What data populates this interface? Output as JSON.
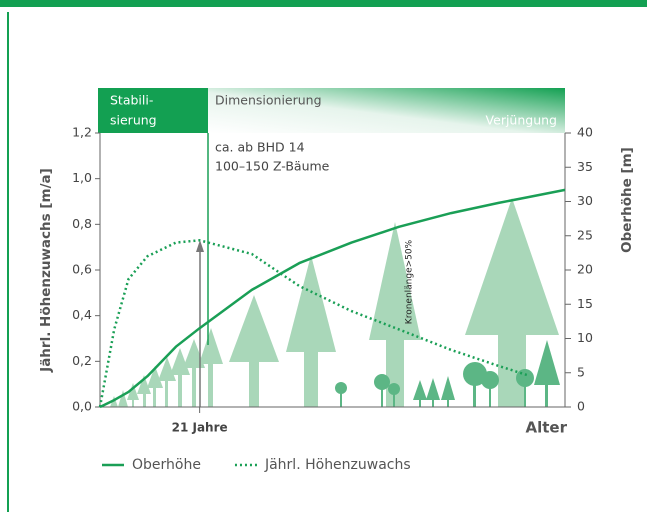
{
  "chart_data": {
    "type": "line",
    "phase_labels": [
      [
        "Stabili-",
        "sierung"
      ],
      "Dimensionierung",
      "Verjüngung"
    ],
    "annotations": [
      "ca. ab BHD 14",
      "100–150 Z-Bäume",
      "Kronenlänge>50%"
    ],
    "xlabel": "Alter",
    "ylabel": "Jährl. Höhenzuwachs [m/a]",
    "y2label": "Oberhöhe [m]",
    "xlim": [
      0,
      98
    ],
    "xticks": [
      {
        "value": 21,
        "label": "21 Jahre"
      }
    ],
    "ylim": [
      0,
      1.2
    ],
    "yticks": [
      {
        "value": 0,
        "label": "0,0"
      },
      {
        "value": 0.2,
        "label": "0,2"
      },
      {
        "value": 0.4,
        "label": "0,4"
      },
      {
        "value": 0.6,
        "label": "0,6"
      },
      {
        "value": 0.8,
        "label": "0,8"
      },
      {
        "value": 1.0,
        "label": "1,0"
      },
      {
        "value": 1.2,
        "label": "1,2"
      }
    ],
    "y2lim": [
      0,
      40
    ],
    "y2ticks": [
      0,
      5,
      10,
      15,
      20,
      25,
      30,
      35,
      40
    ],
    "x": [
      0,
      3,
      6,
      10,
      16,
      21,
      32,
      42,
      53,
      63,
      74,
      84,
      90,
      98
    ],
    "series": [
      {
        "name": "Oberhöhe",
        "color": "#1a9f56",
        "linestyle": "solid",
        "axis": "y2",
        "values": [
          0,
          1,
          2.2,
          4.5,
          8.8,
          11.5,
          17.1,
          21,
          24,
          26.3,
          28.3,
          29.8,
          30.6,
          31.7
        ]
      },
      {
        "name": "Jährl. Höhenzuwachs",
        "color": "#1a9f56",
        "linestyle": "dotted",
        "axis": "y",
        "values": [
          0,
          0.34,
          0.56,
          0.66,
          0.72,
          0.73,
          0.67,
          0.53,
          0.42,
          0.34,
          0.25,
          0.18,
          0.14,
          null
        ]
      }
    ],
    "grid": false
  }
}
